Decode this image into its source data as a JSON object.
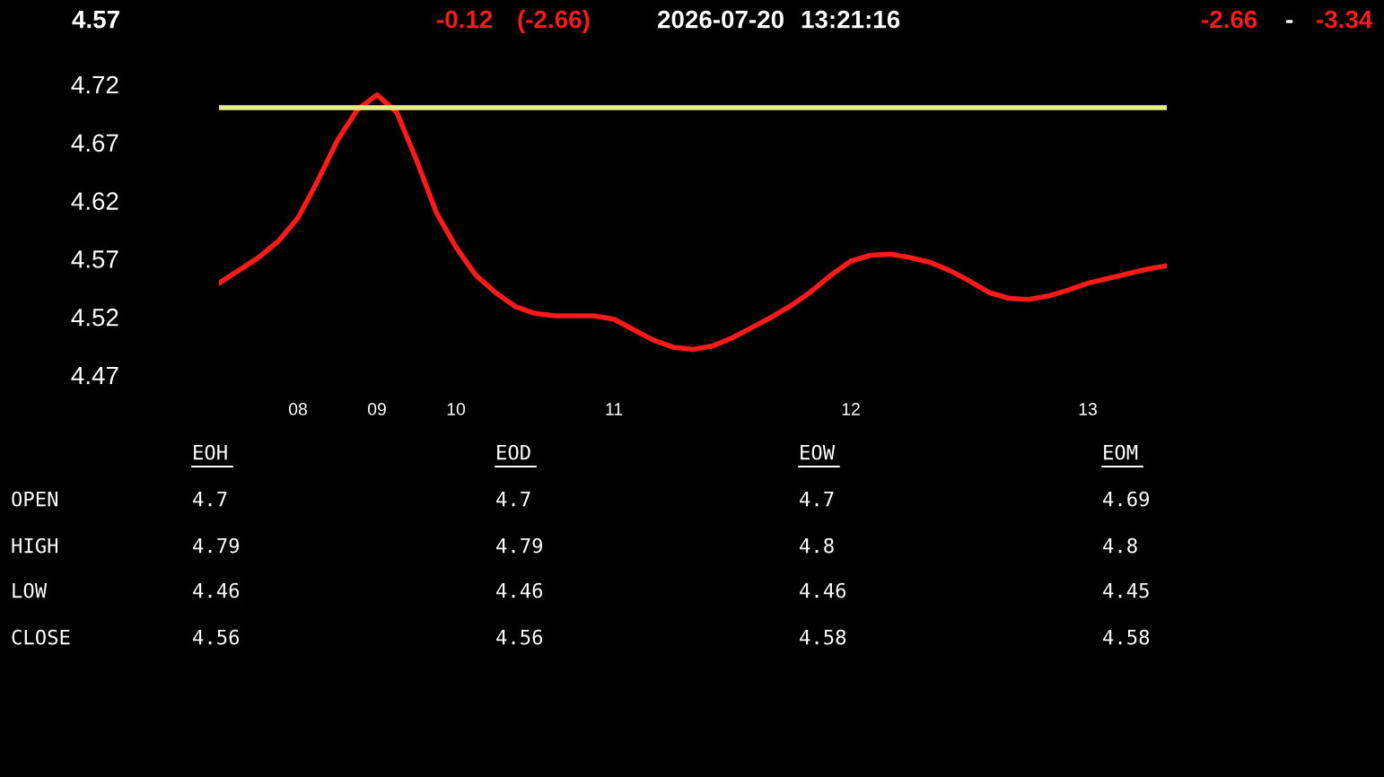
{
  "chart_data": {
    "type": "line",
    "categories": [
      null,
      null,
      null,
      null,
      "08",
      null,
      null,
      null,
      "09",
      null,
      null,
      null,
      "10",
      null,
      null,
      null,
      null,
      null,
      null,
      null,
      "11",
      null,
      null,
      null,
      null,
      null,
      null,
      null,
      null,
      null,
      null,
      null,
      "12",
      null,
      null,
      null,
      null,
      null,
      null,
      null,
      null,
      null,
      null,
      null,
      "13",
      null,
      null,
      null,
      null
    ],
    "series": [
      {
        "color": "#ff1a1a",
        "values": [
          4.549,
          4.56,
          4.571,
          4.585,
          4.605,
          4.637,
          4.672,
          4.698,
          4.711,
          4.696,
          4.655,
          4.61,
          4.58,
          4.556,
          4.541,
          4.529,
          4.523,
          4.521,
          4.521,
          4.521,
          4.518,
          4.509,
          4.5,
          4.494,
          4.492,
          4.495,
          4.502,
          4.511,
          4.52,
          4.53,
          4.542,
          4.556,
          4.568,
          4.573,
          4.574,
          4.571,
          4.567,
          4.56,
          4.551,
          4.541,
          4.536,
          4.535,
          4.538,
          4.543,
          4.549,
          4.553,
          4.557,
          4.561,
          4.564
        ]
      }
    ],
    "ref_lines": [
      {
        "axis": "y",
        "value": 4.7,
        "label": null,
        "color": "#e4ec86"
      }
    ],
    "ylim": [
      4.47,
      4.72
    ],
    "yticks": [
      4.47,
      4.52,
      4.57,
      4.62,
      4.67,
      4.72
    ],
    "grid": false,
    "annotations": [
      "4.57",
      "-0.12",
      "(-2.66)",
      "2026-07-20",
      "13:21:16",
      "-2.66",
      "-",
      "-3.34",
      "EOH",
      "EOD",
      "EOW",
      "EOM",
      "OPEN",
      "HIGH",
      "LOW",
      "CLOSE",
      "4.7",
      "4.7",
      "4.7",
      "4.69",
      "4.79",
      "4.79",
      "4.8",
      "4.8",
      "4.46",
      "4.46",
      "4.46",
      "4.45",
      "4.56",
      "4.56",
      "4.58",
      "4.58"
    ]
  }
}
